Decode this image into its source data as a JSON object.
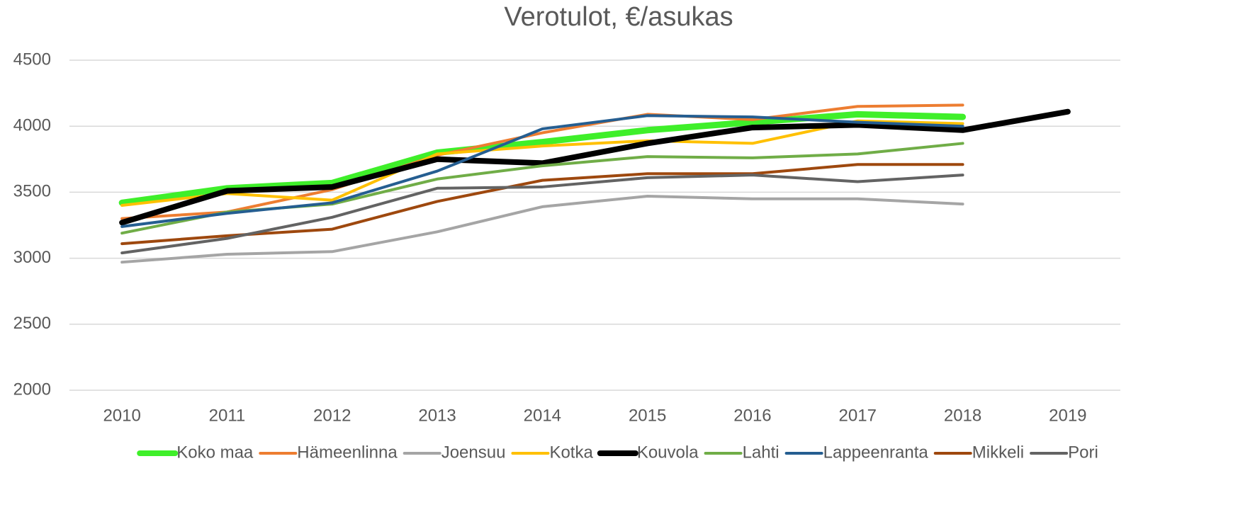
{
  "chart_data": {
    "type": "line",
    "title": "Verotulot, €/asukas",
    "categories": [
      "2010",
      "2011",
      "2012",
      "2013",
      "2014",
      "2015",
      "2016",
      "2017",
      "2018",
      "2019"
    ],
    "ylim": [
      2000,
      4500
    ],
    "yticks": [
      2000,
      2500,
      3000,
      3500,
      4000,
      4500
    ],
    "grid": true,
    "legend": "bottom",
    "series": [
      {
        "name": "Koko maa",
        "color": "#3fef2a",
        "line_width": 9,
        "values": [
          3420,
          3530,
          3570,
          3800,
          3880,
          3970,
          4030,
          4090,
          4070,
          null
        ]
      },
      {
        "name": "Hämeenlinna",
        "color": "#ed7d31",
        "line_width": 4,
        "values": [
          3300,
          3350,
          3520,
          3780,
          3950,
          4090,
          4050,
          4150,
          4160,
          null
        ]
      },
      {
        "name": "Joensuu",
        "color": "#a5a5a5",
        "line_width": 4,
        "values": [
          2970,
          3030,
          3050,
          3200,
          3390,
          3470,
          3450,
          3450,
          3410,
          null
        ]
      },
      {
        "name": "Kotka",
        "color": "#ffc000",
        "line_width": 4,
        "values": [
          3400,
          3490,
          3440,
          3790,
          3850,
          3890,
          3870,
          4040,
          4020,
          null
        ]
      },
      {
        "name": "Kouvola",
        "color": "#000000",
        "line_width": 8,
        "values": [
          3270,
          3510,
          3540,
          3750,
          3720,
          3870,
          3990,
          4010,
          3970,
          4110
        ]
      },
      {
        "name": "Lahti",
        "color": "#70ad47",
        "line_width": 4,
        "values": [
          3190,
          3350,
          3410,
          3600,
          3700,
          3770,
          3760,
          3790,
          3870,
          null
        ]
      },
      {
        "name": "Lappeenranta",
        "color": "#255e91",
        "line_width": 4,
        "values": [
          3240,
          3340,
          3420,
          3660,
          3980,
          4080,
          4070,
          4030,
          4000,
          null
        ]
      },
      {
        "name": "Mikkeli",
        "color": "#9e480e",
        "line_width": 4,
        "values": [
          3110,
          3170,
          3220,
          3430,
          3590,
          3640,
          3640,
          3710,
          3710,
          null
        ]
      },
      {
        "name": "Pori",
        "color": "#636363",
        "line_width": 4,
        "values": [
          3040,
          3150,
          3310,
          3530,
          3540,
          3610,
          3630,
          3580,
          3630,
          null
        ]
      }
    ]
  }
}
